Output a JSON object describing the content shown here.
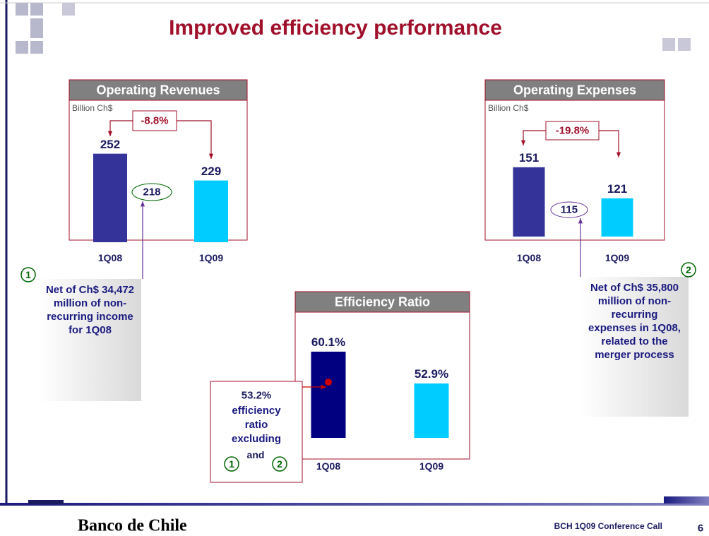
{
  "title": "Improved efficiency performance",
  "chart_data": [
    {
      "type": "bar",
      "title": "Operating Revenues",
      "unit": "Billion Ch$",
      "categories": [
        "1Q08",
        "1Q09"
      ],
      "values": [
        252,
        229
      ],
      "colors": [
        "#333399",
        "#00ccff"
      ],
      "ylim": [
        176,
        290
      ],
      "change": "-8.8%",
      "adjusted": 218,
      "note_number": "1",
      "note": "Net of Ch$ 34,472 million of non-recurring income for 1Q08"
    },
    {
      "type": "bar",
      "title": "Operating Expenses",
      "unit": "Billion Ch$",
      "categories": [
        "1Q08",
        "1Q09"
      ],
      "values": [
        151,
        121
      ],
      "colors": [
        "#333399",
        "#00ccff"
      ],
      "ylim": [
        84,
        170
      ],
      "change": "-19.8%",
      "adjusted": 115,
      "note_number": "2",
      "note": "Net of Ch$ 35,800 million of non-recurring expenses in 1Q08, related to the merger process"
    },
    {
      "type": "bar",
      "title": "Efficiency Ratio",
      "categories": [
        "1Q08",
        "1Q09"
      ],
      "values": [
        60.1,
        52.9
      ],
      "value_labels": [
        "60.1%",
        "52.9%"
      ],
      "colors": [
        "#000080",
        "#00ccff"
      ],
      "ylim": [
        40.6,
        70
      ],
      "adjusted": 53.2,
      "adjusted_label": "53.2%",
      "note": "efficiency ratio excluding",
      "note_join": "and"
    }
  ],
  "footer": {
    "brand": "Banco de Chile",
    "event": "BCH 1Q09 Conference Call",
    "page": "6"
  }
}
